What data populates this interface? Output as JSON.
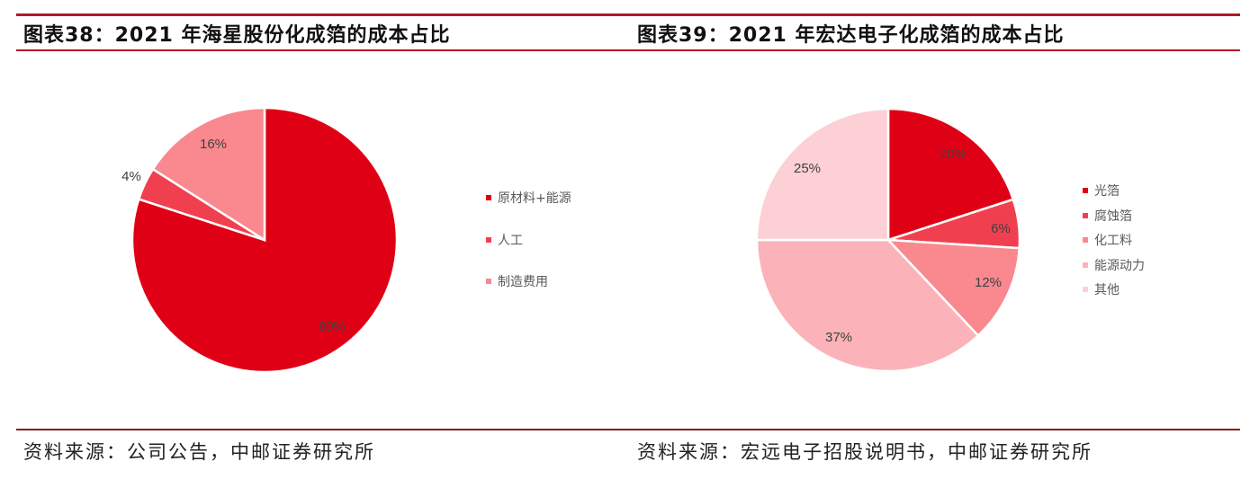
{
  "left": {
    "title": "图表38：2021 年海星股份化成箔的成本占比",
    "source": "资料来源：公司公告，中邮证券研究所",
    "legend": [
      {
        "label": "原材料+能源",
        "color": "#e00016"
      },
      {
        "label": "人工",
        "color": "#f0404f"
      },
      {
        "label": "制造费用",
        "color": "#f9888f"
      }
    ],
    "labels": [
      "80%",
      "4%",
      "16%"
    ]
  },
  "right": {
    "title": "图表39：2021 年宏达电子化成箔的成本占比",
    "source": "资料来源：宏远电子招股说明书，中邮证券研究所",
    "legend": [
      {
        "label": "光箔",
        "color": "#e00016"
      },
      {
        "label": "腐蚀箔",
        "color": "#f0404f"
      },
      {
        "label": "化工料",
        "color": "#f9888f"
      },
      {
        "label": "能源动力",
        "color": "#fbb3b9"
      },
      {
        "label": "其他",
        "color": "#fcd0d4"
      }
    ],
    "labels": [
      "20%",
      "6%",
      "12%",
      "37%",
      "25%"
    ]
  },
  "chart_data": [
    {
      "type": "pie",
      "title": "图表38：2021 年海星股份化成箔的成本占比",
      "categories": [
        "原材料+能源",
        "人工",
        "制造费用"
      ],
      "values": [
        80,
        4,
        16
      ],
      "unit": "%",
      "colors": [
        "#e00016",
        "#f0404f",
        "#f9888f"
      ],
      "legend_position": "right",
      "source": "资料来源：公司公告，中邮证券研究所"
    },
    {
      "type": "pie",
      "title": "图表39：2021 年宏达电子化成箔的成本占比",
      "categories": [
        "光箔",
        "腐蚀箔",
        "化工料",
        "能源动力",
        "其他"
      ],
      "values": [
        20,
        6,
        12,
        37,
        25
      ],
      "unit": "%",
      "colors": [
        "#e00016",
        "#f0404f",
        "#f9888f",
        "#fbb3b9",
        "#fcd0d4"
      ],
      "legend_position": "right",
      "source": "资料来源：宏远电子招股说明书，中邮证券研究所"
    }
  ]
}
